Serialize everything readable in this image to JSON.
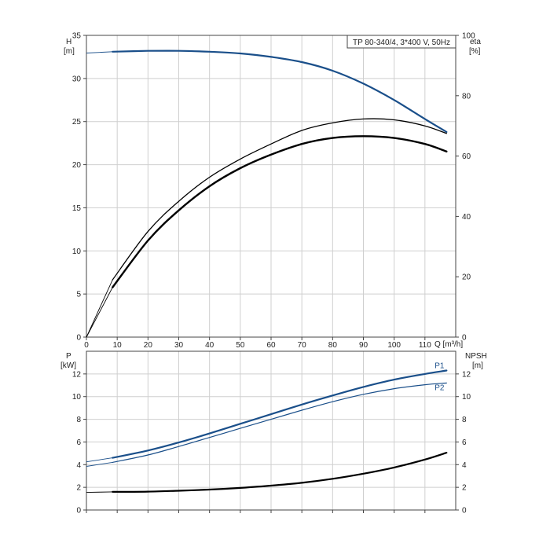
{
  "chart_data": [
    {
      "type": "line",
      "title": "TP 80-340/4, 3*400 V, 50Hz",
      "ylabel_left": "H",
      "ylabel_left_unit": "[m]",
      "ylabel_right": "eta",
      "ylabel_right_unit": "[%]",
      "xlabel": "Q [m³/h]",
      "xlim": [
        0,
        120
      ],
      "ylim_left": [
        0,
        35
      ],
      "ylim_right": [
        0,
        100
      ],
      "x_ticks": [
        "0",
        "10",
        "20",
        "30",
        "40",
        "50",
        "60",
        "70",
        "80",
        "90",
        "100",
        "110"
      ],
      "y_ticks_left": [
        "0",
        "5",
        "10",
        "15",
        "20",
        "25",
        "30",
        "35"
      ],
      "y_ticks_right": [
        "0",
        "20",
        "40",
        "60",
        "80",
        "100"
      ],
      "grid": true,
      "colors": {
        "head": "#1a4f8a",
        "eta": "#000000"
      },
      "series": [
        {
          "key": "H",
          "axis": "left",
          "x": [
            0,
            8.5,
            20,
            30,
            40,
            50,
            60,
            70,
            80,
            90,
            100,
            110,
            117
          ],
          "y": [
            32.95,
            33.1,
            33.2,
            33.2,
            33.1,
            32.9,
            32.5,
            31.9,
            30.9,
            29.4,
            27.5,
            25.3,
            23.8
          ]
        },
        {
          "key": "eta_1",
          "axis": "right",
          "x": [
            0,
            8.5,
            20,
            30,
            40,
            50,
            60,
            70,
            80,
            90,
            100,
            110,
            117
          ],
          "y": [
            0,
            19,
            35,
            45,
            53,
            59,
            64,
            68.5,
            71,
            72.3,
            72.0,
            70.0,
            67.5
          ]
        },
        {
          "key": "eta_2",
          "axis": "right",
          "x": [
            0,
            8.5,
            20,
            30,
            40,
            50,
            60,
            70,
            80,
            90,
            100,
            110,
            117
          ],
          "y": [
            0,
            16.5,
            32,
            42,
            50,
            56,
            60.5,
            64,
            66,
            66.6,
            66.0,
            64.0,
            61.5
          ]
        }
      ]
    },
    {
      "type": "line",
      "ylabel_left": "P",
      "ylabel_left_unit": "[kW]",
      "ylabel_right": "NPSH",
      "ylabel_right_unit": "[m]",
      "xlim": [
        0,
        120
      ],
      "ylim_left": [
        0,
        14
      ],
      "ylim_right": [
        0,
        14
      ],
      "y_ticks_left": [
        "0",
        "2",
        "4",
        "6",
        "8",
        "10",
        "12"
      ],
      "y_ticks_right": [
        "0",
        "2",
        "4",
        "6",
        "8",
        "10",
        "12"
      ],
      "grid": true,
      "colors": {
        "power": "#1a4f8a",
        "npsh": "#000000",
        "label": "#1a4f8a"
      },
      "series": [
        {
          "name": "P1",
          "axis": "left",
          "x": [
            0,
            8.5,
            20,
            30,
            40,
            50,
            60,
            70,
            80,
            90,
            100,
            110,
            117
          ],
          "y": [
            4.25,
            4.6,
            5.25,
            5.95,
            6.75,
            7.6,
            8.45,
            9.3,
            10.1,
            10.85,
            11.5,
            12.0,
            12.3
          ]
        },
        {
          "name": "P2",
          "axis": "left",
          "x": [
            0,
            8.5,
            20,
            30,
            40,
            50,
            60,
            70,
            80,
            90,
            100,
            110,
            117
          ],
          "y": [
            3.85,
            4.2,
            4.85,
            5.6,
            6.4,
            7.2,
            8.0,
            8.8,
            9.55,
            10.2,
            10.7,
            11.05,
            11.2
          ]
        },
        {
          "key": "NPSH",
          "axis": "right",
          "x": [
            0,
            8.5,
            20,
            30,
            40,
            50,
            60,
            70,
            80,
            90,
            100,
            110,
            117
          ],
          "y": [
            1.55,
            1.6,
            1.62,
            1.7,
            1.8,
            1.95,
            2.15,
            2.4,
            2.75,
            3.2,
            3.75,
            4.45,
            5.05
          ]
        }
      ]
    }
  ]
}
